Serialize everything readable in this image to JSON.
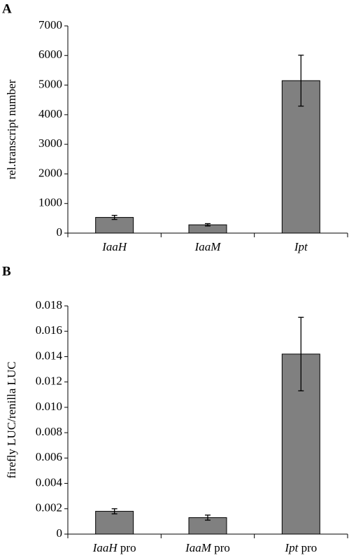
{
  "chart_data": [
    {
      "type": "bar",
      "label": "A",
      "y_label": "rel.transcript number",
      "categories": [
        "IaaH",
        "IaaM",
        "Ipt"
      ],
      "values": [
        530,
        280,
        5150
      ],
      "errors": [
        70,
        40,
        860
      ],
      "color": "#808080",
      "ylim": [
        0,
        7000
      ],
      "yticks": [
        0,
        1000,
        2000,
        3000,
        4000,
        5000,
        6000,
        7000
      ],
      "grid": false
    },
    {
      "type": "bar",
      "label": "B",
      "y_label": "firefly LUC/renilla LUC",
      "categories": [
        "IaaH pro",
        "IaaM pro",
        "Ipt pro"
      ],
      "values": [
        0.0018,
        0.0013,
        0.0142
      ],
      "errors": [
        0.0002,
        0.0002,
        0.0029
      ],
      "color": "#808080",
      "ylim": [
        0,
        0.018
      ],
      "yticks": [
        0,
        0.002,
        0.004,
        0.006,
        0.008,
        {
          "value": 0.01,
          "label": "0.010"
        },
        0.012,
        0.014,
        0.016,
        0.018
      ],
      "grid": false
    }
  ]
}
